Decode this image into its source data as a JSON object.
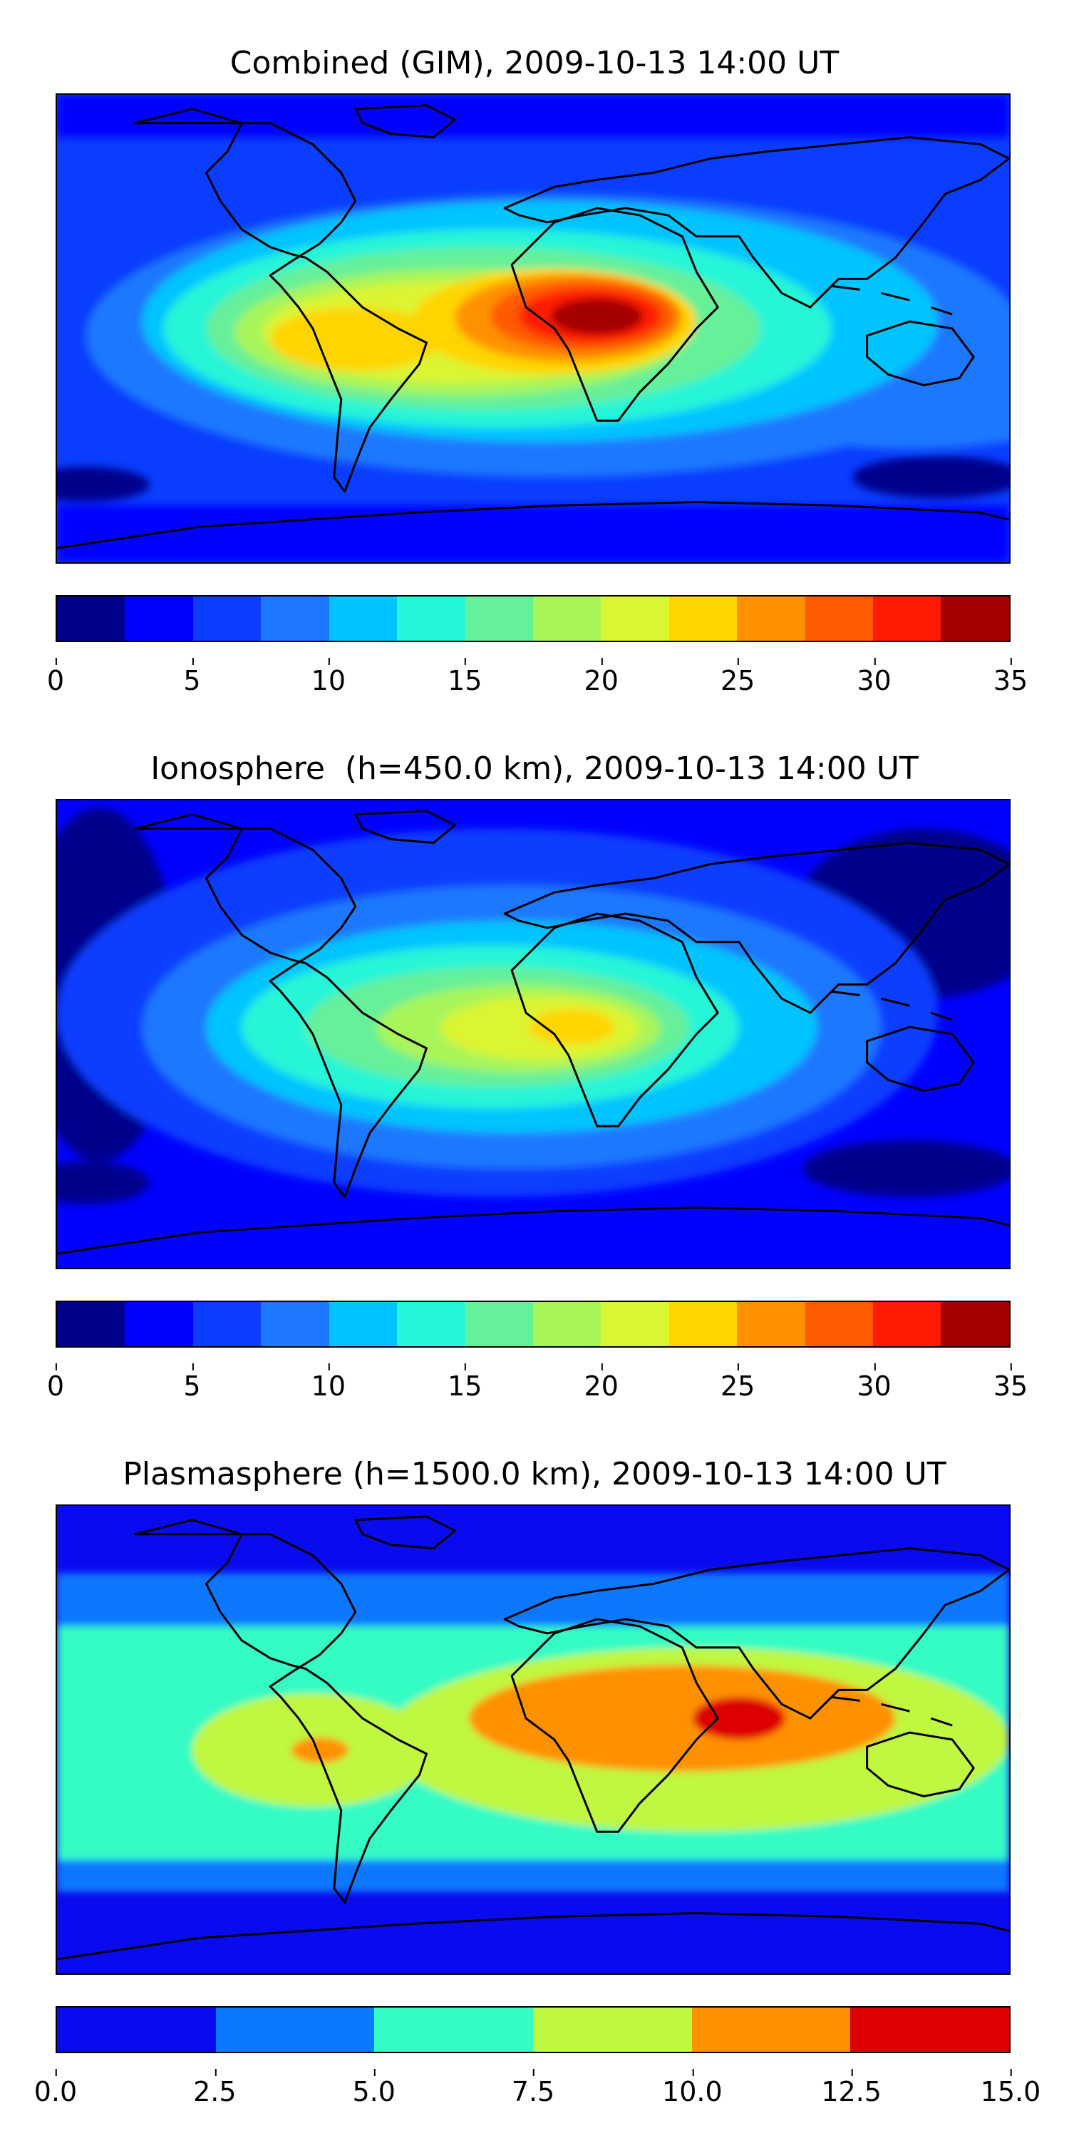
{
  "chart_data": [
    {
      "type": "heatmap",
      "title": "Combined (GIM), 2009-10-13 14:00 UT",
      "colorbar": {
        "levels": [
          0,
          2.5,
          5,
          7.5,
          10,
          12.5,
          15,
          17.5,
          20,
          22.5,
          25,
          27.5,
          30,
          32.5,
          35
        ],
        "tick_labels": [
          "0",
          "5",
          "10",
          "15",
          "20",
          "25",
          "30",
          "35"
        ],
        "colors": [
          "#00008b",
          "#0000ff",
          "#0a3dff",
          "#1e78ff",
          "#00c4ff",
          "#25f5d8",
          "#66f09a",
          "#a8f55a",
          "#dcf531",
          "#ffd500",
          "#ff9100",
          "#ff5a00",
          "#ff1a00",
          "#a50000"
        ]
      },
      "features": [
        {
          "label": "equatorial maximum over central Africa",
          "lon": 20,
          "lat": 0,
          "value": 34
        },
        {
          "label": "secondary maximum over South America",
          "lon": -55,
          "lat": -5,
          "value": 23
        },
        {
          "label": "polar minimum",
          "lon": 0,
          "lat": -85,
          "value": 3
        }
      ]
    },
    {
      "type": "heatmap",
      "title": "Ionosphere  (h=450.0 km), 2009-10-13 14:00 UT",
      "colorbar": {
        "levels": [
          0,
          2.5,
          5,
          7.5,
          10,
          12.5,
          15,
          17.5,
          20,
          22.5,
          25,
          27.5,
          30,
          32.5,
          35
        ],
        "tick_labels": [
          "0",
          "5",
          "10",
          "15",
          "20",
          "25",
          "30",
          "35"
        ],
        "colors": [
          "#00008b",
          "#0000ff",
          "#0a3dff",
          "#1e78ff",
          "#00c4ff",
          "#25f5d8",
          "#66f09a",
          "#a8f55a",
          "#dcf531",
          "#ffd500",
          "#ff9100",
          "#ff5a00",
          "#ff1a00",
          "#a50000"
        ]
      },
      "features": [
        {
          "label": "equatorial maximum over west Africa",
          "lon": 10,
          "lat": 3,
          "value": 23
        },
        {
          "label": "night-side minimum over Pacific",
          "lon": -165,
          "lat": 0,
          "value": 2
        }
      ]
    },
    {
      "type": "heatmap",
      "title": "Plasmasphere (h=1500.0 km), 2009-10-13 14:00 UT",
      "colorbar": {
        "levels": [
          0.0,
          2.5,
          5.0,
          7.5,
          10.0,
          12.5,
          15.0
        ],
        "tick_labels": [
          "0.0",
          "2.5",
          "5.0",
          "7.5",
          "10.0",
          "12.5",
          "15.0"
        ],
        "colors": [
          "#0a0aee",
          "#0a78ff",
          "#35fbc4",
          "#c0f740",
          "#ff9100",
          "#dd0000"
        ]
      },
      "features": [
        {
          "label": "maximum over India / Bay of Bengal",
          "lon": 85,
          "lat": 15,
          "value": 13.5
        },
        {
          "label": "local maximum over South America",
          "lon": -70,
          "lat": -10,
          "value": 11
        },
        {
          "label": "high-latitude minimum",
          "lon": 0,
          "lat": 75,
          "value": 2
        }
      ]
    }
  ]
}
